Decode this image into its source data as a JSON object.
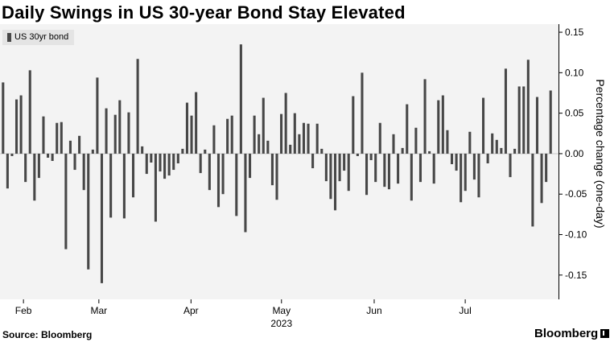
{
  "title": "Daily Swings in US 30-year Bond Stay Elevated",
  "source": "Source: Bloomberg",
  "brand": "Bloomberg",
  "chart_data": {
    "type": "bar",
    "series": [
      {
        "name": "US 30yr bond",
        "color": "#474747",
        "values": [
          0.088,
          -0.043,
          -0.003,
          0.067,
          0.072,
          -0.035,
          0.103,
          -0.058,
          -0.03,
          0.046,
          -0.005,
          -0.009,
          0.038,
          0.039,
          -0.118,
          0.016,
          -0.02,
          0.022,
          -0.045,
          -0.143,
          0.005,
          0.094,
          -0.16,
          0.056,
          -0.079,
          0.048,
          0.066,
          -0.08,
          0.051,
          -0.054,
          0.117,
          0.009,
          -0.025,
          -0.011,
          -0.084,
          -0.022,
          -0.031,
          -0.027,
          -0.02,
          -0.012,
          0.006,
          0.063,
          0.047,
          0.076,
          -0.024,
          0.005,
          -0.045,
          0.035,
          -0.066,
          -0.05,
          0.043,
          0.047,
          -0.077,
          0.135,
          -0.097,
          -0.03,
          0.047,
          0.024,
          0.069,
          0.016,
          -0.039,
          -0.057,
          0.049,
          0.075,
          0.011,
          0.05,
          0.024,
          0.038,
          0.037,
          -0.018,
          0.037,
          0.006,
          -0.034,
          -0.056,
          -0.07,
          -0.034,
          -0.021,
          -0.046,
          0.071,
          -0.003,
          0.1,
          -0.051,
          -0.008,
          -0.035,
          0.038,
          -0.041,
          -0.044,
          0.024,
          -0.037,
          0.007,
          0.061,
          -0.058,
          0.032,
          -0.035,
          0.092,
          0.003,
          -0.037,
          0.066,
          0.072,
          0.029,
          -0.013,
          -0.021,
          -0.06,
          -0.046,
          0.027,
          -0.032,
          -0.054,
          0.069,
          -0.012,
          0.025,
          0.017,
          0.007,
          0.105,
          -0.029,
          0.006,
          0.083,
          0.083,
          0.116,
          -0.09,
          0.07,
          -0.061,
          -0.035,
          0.078
        ]
      }
    ],
    "x_ticks": [
      "Feb",
      "Mar",
      "Apr",
      "May",
      "Jun",
      "Jul"
    ],
    "x_tick_positions": [
      0.042,
      0.177,
      0.342,
      0.504,
      0.67,
      0.833
    ],
    "x_year": "2023",
    "ylim": [
      -0.18,
      0.16
    ],
    "y_ticks": [
      -0.15,
      -0.1,
      -0.05,
      0.0,
      0.05,
      0.1,
      0.15
    ],
    "y_tick_labels": [
      "-0.15",
      "-0.10",
      "-0.05",
      "0.00",
      "0.05",
      "0.10",
      "0.15"
    ],
    "ylabel": "Percentage change (one-day)",
    "grid": false,
    "legend_position": "top-left"
  }
}
